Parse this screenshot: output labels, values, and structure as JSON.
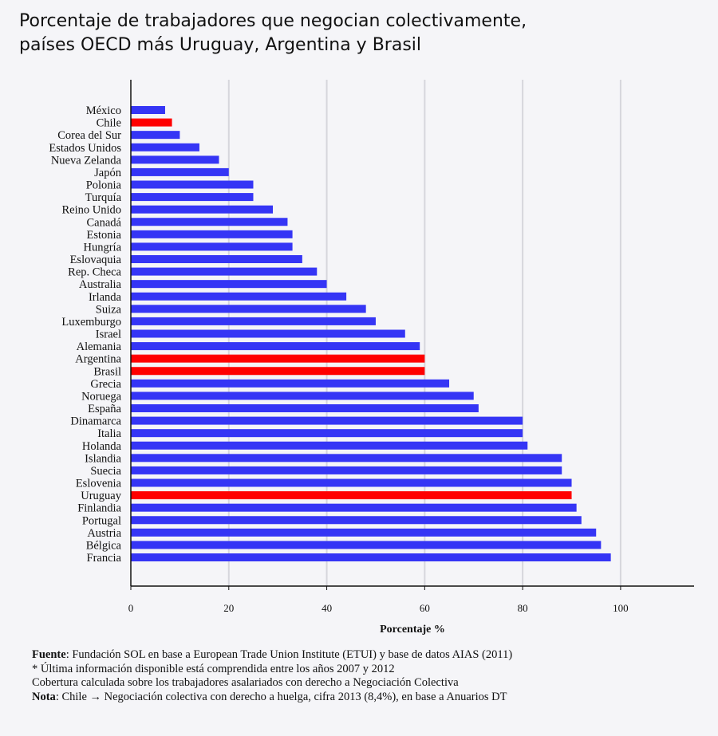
{
  "title_line1": "Porcentaje de trabajadores que negocian colectivamente,",
  "title_line2": "países OECD más Uruguay, Argentina y Brasil",
  "chart_data": {
    "type": "bar",
    "orientation": "horizontal",
    "categories": [
      "México",
      "Chile",
      "Corea del Sur",
      "Estados Unidos",
      "Nueva Zelanda",
      "Japón",
      "Polonia",
      "Turquía",
      "Reino Unido",
      "Canadá",
      "Estonia",
      "Hungría",
      "Eslovaquia",
      "Rep. Checa",
      "Australia",
      "Irlanda",
      "Suiza",
      "Luxemburgo",
      "Israel",
      "Alemania",
      "Argentina",
      "Brasil",
      "Grecia",
      "Noruega",
      "España",
      "Dinamarca",
      "Italia",
      "Holanda",
      "Islandia",
      "Suecia",
      "Eslovenia",
      "Uruguay",
      "Finlandia",
      "Portugal",
      "Austria",
      "Bélgica",
      "Francia"
    ],
    "values": [
      7,
      8.4,
      10,
      14,
      18,
      20,
      25,
      25,
      29,
      32,
      33,
      33,
      35,
      38,
      40,
      44,
      48,
      50,
      56,
      59,
      60,
      60,
      65,
      70,
      71,
      80,
      80,
      81,
      88,
      88,
      90,
      90,
      91,
      92,
      95,
      96,
      98
    ],
    "highlight": [
      "Chile",
      "Argentina",
      "Brasil",
      "Uruguay"
    ],
    "colors": {
      "default": "#3535f5",
      "highlight": "#ff0000"
    },
    "xlabel": "Porcentaje %",
    "ylabel": "",
    "xlim": [
      0,
      115
    ],
    "xticks": [
      0,
      20,
      40,
      60,
      80,
      100
    ],
    "grid": "vertical"
  },
  "notes": {
    "source_label": "Fuente",
    "source_text": ": Fundación SOL en base a European Trade Union Institute (ETUI) y base de datos AIAS (2011)",
    "line2": "* Última información disponible está comprendida entre los años 2007 y 2012",
    "line3": "Cobertura calculada sobre los trabajadores asalariados con derecho a Negociación Colectiva",
    "note_label": "Nota",
    "note_text": ": Chile → Negociación colectiva con derecho a huelga, cifra 2013 (8,4%), en base a Anuarios DT"
  }
}
